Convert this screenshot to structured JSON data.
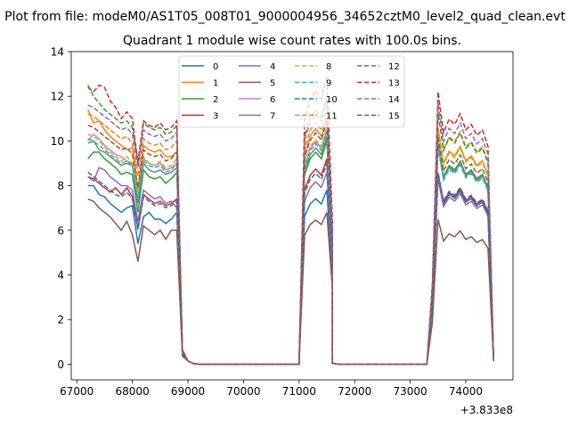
{
  "chart_data": {
    "type": "line",
    "suptitle": "Plot from file: modeM0/AS1T05_008T01_9000004956_34652cztM0_level2_quad_clean.evt",
    "title": "Quadrant 1 module wise count rates with 100.0s bins.",
    "xlabel": "",
    "ylabel": "",
    "x_offset_label": "+3.833e8",
    "xlim": [
      66900,
      74850
    ],
    "ylim": [
      -0.7,
      14
    ],
    "xticks": [
      67000,
      68000,
      69000,
      70000,
      71000,
      72000,
      73000,
      74000
    ],
    "yticks": [
      0,
      2,
      4,
      6,
      8,
      10,
      12,
      14
    ],
    "grid": false,
    "legend": {
      "placement": "top-center",
      "columns": 4
    },
    "segments": [
      {
        "start": 67200,
        "step": 100,
        "count": 17
      },
      {
        "start": 68900,
        "step": 100,
        "count": 21
      },
      {
        "start": 71000,
        "step": 100,
        "count": 7
      },
      {
        "start": 71600,
        "step": 100,
        "count": 18
      },
      {
        "start": 73400,
        "step": 100,
        "count": 12
      }
    ],
    "series": [
      {
        "name": "0",
        "color": "#1f77b4",
        "dashed": false,
        "s1": [
          8.0,
          8.0,
          7.6,
          7.5,
          7.2,
          7.0,
          6.8,
          7.0,
          7.1,
          5.4,
          6.6,
          6.8,
          6.5,
          6.5,
          6.3,
          6.5,
          6.8
        ],
        "s2": 6.5,
        "s3": 7.8,
        "s4": 8.7
      },
      {
        "name": "1",
        "color": "#ff7f0e",
        "dashed": false,
        "s1": [
          11.4,
          10.8,
          10.9,
          10.5,
          10.2,
          10.0,
          9.8,
          9.6,
          9.7,
          7.8,
          9.8,
          9.6,
          9.5,
          9.6,
          9.3,
          9.3,
          9.5
        ],
        "s2": 9.5,
        "s3": 11.1,
        "s4": 10.6
      },
      {
        "name": "2",
        "color": "#2ca02c",
        "dashed": false,
        "s1": [
          9.2,
          9.5,
          9.5,
          9.2,
          9.0,
          8.8,
          8.5,
          8.6,
          8.5,
          6.8,
          8.7,
          8.4,
          8.3,
          8.4,
          8.1,
          8.3,
          8.6
        ],
        "s2": 8.4,
        "s3": 10.0,
        "s4": 9.6
      },
      {
        "name": "3",
        "color": "#d62728",
        "dashed": false,
        "s1": [
          8.4,
          8.3,
          8.1,
          7.9,
          7.7,
          7.9,
          7.6,
          7.9,
          7.5,
          6.1,
          7.6,
          7.4,
          7.2,
          7.3,
          7.1,
          7.2,
          7.4
        ],
        "s2": 7.6,
        "s3": 9.2,
        "s4": 8.8
      },
      {
        "name": "4",
        "color": "#9467bd",
        "dashed": false,
        "s1": [
          8.4,
          8.2,
          8.8,
          8.7,
          8.4,
          8.2,
          8.0,
          8.0,
          7.8,
          6.4,
          7.8,
          7.6,
          7.4,
          7.5,
          7.2,
          7.3,
          7.0
        ],
        "s2": 7.0,
        "s3": 8.6,
        "s4": 8.3
      },
      {
        "name": "5",
        "color": "#8c564b",
        "dashed": false,
        "s1": [
          7.4,
          7.3,
          7.0,
          6.8,
          6.6,
          6.3,
          6.0,
          6.4,
          5.8,
          4.6,
          6.2,
          6.0,
          5.8,
          6.0,
          5.6,
          6.0,
          6.0
        ],
        "s2": 5.5,
        "s3": 6.8,
        "s4": 6.3
      },
      {
        "name": "6",
        "color": "#e377c2",
        "dashed": false,
        "s1": [
          10.0,
          10.3,
          10.1,
          9.8,
          9.6,
          9.4,
          9.3,
          9.1,
          9.0,
          7.5,
          9.2,
          9.0,
          8.9,
          9.0,
          8.7,
          8.8,
          9.0
        ],
        "s2": 9.0,
        "s3": 10.5,
        "s4": 10.1
      },
      {
        "name": "7",
        "color": "#7f7f7f",
        "dashed": false,
        "s1": [
          9.9,
          10.0,
          9.6,
          9.5,
          9.3,
          9.1,
          8.9,
          9.0,
          8.9,
          7.2,
          9.0,
          8.7,
          8.6,
          8.7,
          8.5,
          8.6,
          8.8
        ],
        "s2": 8.7,
        "s3": 10.2,
        "s4": 9.8
      },
      {
        "name": "8",
        "color": "#bcbd22",
        "dashed": true,
        "s1": [
          10.3,
          10.2,
          10.0,
          9.7,
          9.5,
          9.3,
          9.1,
          9.3,
          9.0,
          7.6,
          9.3,
          9.0,
          8.9,
          9.1,
          8.8,
          8.9,
          9.2
        ],
        "s2": 9.1,
        "s3": 10.6,
        "s4": 10.2
      },
      {
        "name": "9",
        "color": "#17becf",
        "dashed": true,
        "s1": [
          10.1,
          10.0,
          9.8,
          9.6,
          9.4,
          9.2,
          9.0,
          9.1,
          8.9,
          7.4,
          9.1,
          8.9,
          8.8,
          8.9,
          8.6,
          8.7,
          9.0
        ],
        "s2": 8.9,
        "s3": 10.4,
        "s4": 10.0
      },
      {
        "name": "10",
        "color": "#1f77b4",
        "dashed": true,
        "s1": [
          8.6,
          8.4,
          8.2,
          8.0,
          7.8,
          7.6,
          7.5,
          7.7,
          7.4,
          6.0,
          7.5,
          7.3,
          7.1,
          7.2,
          7.0,
          7.1,
          7.3
        ],
        "s2": 7.4,
        "s3": 9.0,
        "s4": 8.6
      },
      {
        "name": "11",
        "color": "#ff7f0e",
        "dashed": true,
        "s1": [
          11.2,
          11.1,
          10.9,
          10.7,
          10.5,
          10.3,
          10.1,
          10.2,
          9.9,
          8.4,
          10.1,
          9.9,
          9.8,
          9.9,
          9.6,
          9.7,
          10.0
        ],
        "s2": 9.9,
        "s3": 11.4,
        "s4": 11.0
      },
      {
        "name": "12",
        "color": "#2ca02c",
        "dashed": true,
        "s1": [
          12.5,
          12.0,
          11.7,
          11.4,
          11.2,
          11.0,
          10.8,
          10.9,
          10.6,
          9.1,
          10.8,
          10.6,
          10.5,
          10.6,
          10.3,
          10.4,
          10.7
        ],
        "s2": 10.5,
        "s3": 12.0,
        "s4": 11.6
      },
      {
        "name": "13",
        "color": "#d62728",
        "dashed": true,
        "s1": [
          12.4,
          12.2,
          12.5,
          12.4,
          11.8,
          11.5,
          11.0,
          11.3,
          11.0,
          9.0,
          10.9,
          10.7,
          10.6,
          10.8,
          10.5,
          10.6,
          10.9
        ],
        "s2": 10.9,
        "s3": 12.9,
        "s4": 12.2
      },
      {
        "name": "14",
        "color": "#9467bd",
        "dashed": true,
        "s1": [
          11.6,
          11.5,
          11.3,
          11.1,
          10.9,
          10.7,
          10.5,
          10.6,
          10.3,
          8.8,
          10.5,
          10.3,
          10.2,
          10.3,
          10.0,
          10.1,
          10.4
        ],
        "s2": 10.3,
        "s3": 11.8,
        "s4": 11.4
      },
      {
        "name": "15",
        "color": "#8c564b",
        "dashed": true,
        "s1": [
          10.7,
          10.6,
          10.4,
          10.2,
          10.0,
          9.8,
          9.6,
          9.7,
          9.4,
          7.9,
          9.6,
          9.4,
          9.3,
          9.4,
          9.1,
          9.2,
          9.5
        ],
        "s2": 9.4,
        "s3": 10.9,
        "s4": 10.5
      }
    ]
  }
}
